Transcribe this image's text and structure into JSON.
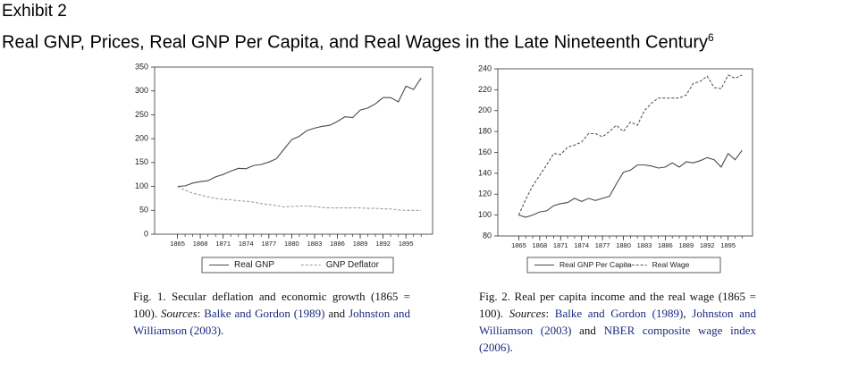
{
  "header": {
    "exhibit": "Exhibit 2",
    "title": "Real GNP, Prices, Real GNP Per Capita, and Real Wages in the Late Nineteenth Century",
    "superscript": "6"
  },
  "chart_data": [
    {
      "type": "line",
      "x": [
        1865,
        1866,
        1867,
        1868,
        1869,
        1870,
        1871,
        1872,
        1873,
        1874,
        1875,
        1876,
        1877,
        1878,
        1879,
        1880,
        1881,
        1882,
        1883,
        1884,
        1885,
        1886,
        1887,
        1888,
        1889,
        1890,
        1891,
        1892,
        1893,
        1894,
        1895,
        1896,
        1897
      ],
      "xlim": [
        1862,
        1898.5
      ],
      "xticks": [
        1865,
        1868,
        1871,
        1874,
        1877,
        1880,
        1883,
        1886,
        1889,
        1892,
        1895
      ],
      "ylim": [
        0,
        350
      ],
      "yticks": [
        0,
        50,
        100,
        150,
        200,
        250,
        300,
        350
      ],
      "series": [
        {
          "name": "Real GNP",
          "color": "#4a4a4a",
          "linestyle": "solid",
          "values": [
            100,
            101,
            107,
            110,
            112,
            120,
            125,
            132,
            138,
            137,
            144,
            146,
            151,
            158,
            178,
            198,
            205,
            217,
            222,
            226,
            228,
            236,
            246,
            244,
            260,
            264,
            273,
            286,
            286,
            277,
            310,
            303,
            327
          ]
        },
        {
          "name": "GNP Deflator",
          "color": "#9a9a9a",
          "linestyle": "dashed",
          "values": [
            100,
            92,
            86,
            82,
            78,
            75,
            73,
            72,
            70,
            69,
            67,
            64,
            62,
            60,
            57,
            58,
            59,
            59,
            58,
            56,
            55,
            55,
            55,
            55,
            55,
            54,
            54,
            53,
            53,
            51,
            50,
            50,
            50
          ]
        }
      ]
    },
    {
      "type": "line",
      "x": [
        1865,
        1866,
        1867,
        1868,
        1869,
        1870,
        1871,
        1872,
        1873,
        1874,
        1875,
        1876,
        1877,
        1878,
        1879,
        1880,
        1881,
        1882,
        1883,
        1884,
        1885,
        1886,
        1887,
        1888,
        1889,
        1890,
        1891,
        1892,
        1893,
        1894,
        1895,
        1896,
        1897
      ],
      "xlim": [
        1862,
        1898.5
      ],
      "xticks": [
        1865,
        1868,
        1871,
        1874,
        1877,
        1880,
        1883,
        1886,
        1889,
        1892,
        1895
      ],
      "ylim": [
        80,
        240
      ],
      "yticks": [
        80,
        100,
        120,
        140,
        160,
        180,
        200,
        220,
        240
      ],
      "series": [
        {
          "name": "Real GNP Per Capita",
          "color": "#4a4a4a",
          "linestyle": "solid",
          "values": [
            100,
            98,
            100,
            103,
            104,
            109,
            111,
            112,
            116,
            113,
            116,
            114,
            116,
            118,
            130,
            141,
            143,
            148,
            148,
            147,
            145,
            146,
            150,
            146,
            151,
            150,
            152,
            155,
            153,
            146,
            159,
            153,
            162
          ]
        },
        {
          "name": "Real Wage",
          "color": "#555555",
          "linestyle": "dashed",
          "values": [
            100,
            115,
            128,
            138,
            148,
            159,
            158,
            165,
            167,
            170,
            178,
            178,
            175,
            180,
            186,
            180,
            189,
            186,
            200,
            207,
            212,
            212,
            212,
            212,
            215,
            226,
            228,
            233,
            222,
            221,
            234,
            231,
            234
          ]
        }
      ]
    }
  ],
  "captions": [
    [
      {
        "text": "Fig. 1. Secular deflation and economic growth (1865 = 100). ",
        "kind": "plain"
      },
      {
        "text": "Sources",
        "kind": "em"
      },
      {
        "text": ": ",
        "kind": "plain"
      },
      {
        "text": "Balke and Gordon (1989)",
        "kind": "ref"
      },
      {
        "text": " and ",
        "kind": "plain"
      },
      {
        "text": "Johnston and Williamson (2003)",
        "kind": "ref"
      },
      {
        "text": ".",
        "kind": "plain"
      }
    ],
    [
      {
        "text": "Fig. 2. Real per capita income and the real wage (1865 = 100). ",
        "kind": "plain"
      },
      {
        "text": "Sources",
        "kind": "em"
      },
      {
        "text": ": ",
        "kind": "plain"
      },
      {
        "text": "Balke and Gordon (1989)",
        "kind": "ref"
      },
      {
        "text": ", ",
        "kind": "plain"
      },
      {
        "text": "Johnston and Williamson (2003)",
        "kind": "ref"
      },
      {
        "text": " and ",
        "kind": "plain"
      },
      {
        "text": "NBER composite wage index (2006)",
        "kind": "ref"
      },
      {
        "text": ".",
        "kind": "plain"
      }
    ]
  ]
}
